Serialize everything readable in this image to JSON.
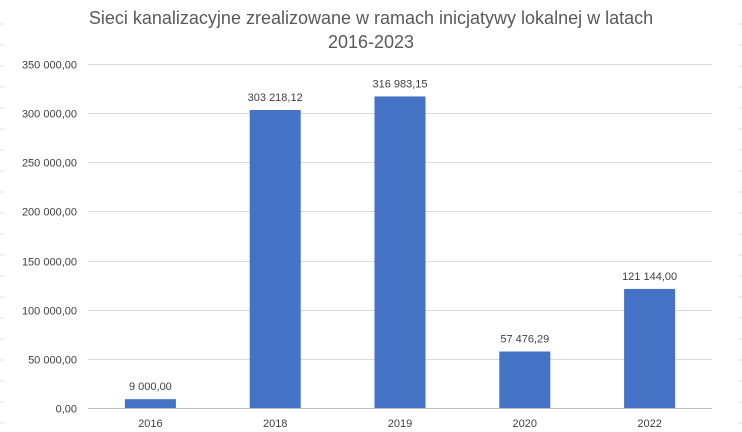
{
  "chart_data": {
    "type": "bar",
    "title_line1": "Sieci kanalizacyjne zrealizowane w ramach inicjatywy lokalnej w latach",
    "title_line2": "2016-2023",
    "categories": [
      "2016",
      "2018",
      "2019",
      "2020",
      "2022"
    ],
    "values": [
      9000.0,
      303218.12,
      316983.15,
      57476.29,
      121144.0
    ],
    "data_labels": [
      "9 000,00",
      "303 218,12",
      "316 983,15",
      "57 476,29",
      "121 144,00"
    ],
    "y_ticks": [
      0,
      50000,
      100000,
      150000,
      200000,
      250000,
      300000,
      350000
    ],
    "y_tick_labels": [
      "0,00",
      "50 000,00",
      "100 000,00",
      "150 000,00",
      "200 000,00",
      "250 000,00",
      "300 000,00",
      "350 000,00"
    ],
    "ylim": [
      0,
      350000
    ],
    "xlabel": "",
    "ylabel": "",
    "grid": true,
    "legend": "none",
    "bar_color": "#4472C4",
    "grid_color": "#D9D9D9",
    "text_color": "#404040"
  }
}
